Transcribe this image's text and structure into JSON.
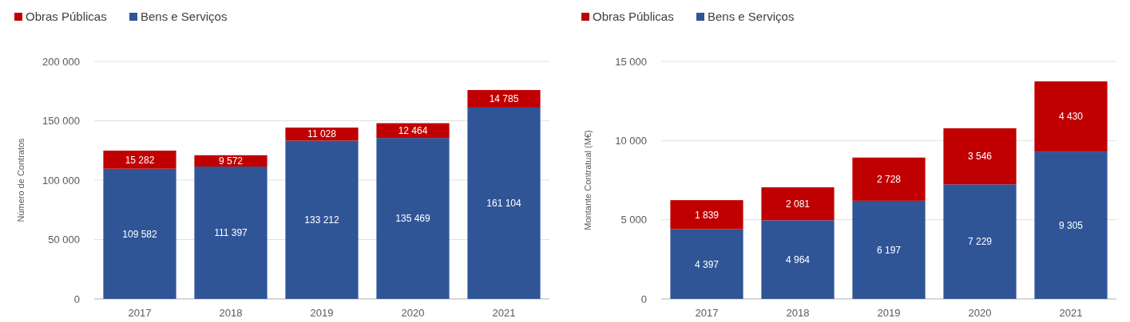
{
  "chart_data": [
    {
      "type": "bar",
      "stacked": true,
      "categories": [
        "2017",
        "2018",
        "2019",
        "2020",
        "2021"
      ],
      "ylabel": "Número de Contratos",
      "ylim": [
        0,
        200000
      ],
      "yticks": [
        {
          "value": 0,
          "label": "0"
        },
        {
          "value": 50000,
          "label": "50 000"
        },
        {
          "value": 100000,
          "label": "100 000"
        },
        {
          "value": 150000,
          "label": "150 000"
        },
        {
          "value": 200000,
          "label": "200 000"
        }
      ],
      "grid": "y",
      "legend": "top left",
      "series": [
        {
          "name": "Bens e Serviços",
          "color": "#2f5597",
          "values": [
            109582,
            111397,
            133212,
            135469,
            161104
          ],
          "value_labels": [
            "109 582",
            "111 397",
            "133 212",
            "135 469",
            "161 104"
          ]
        },
        {
          "name": "Obras Públicas",
          "color": "#c00000",
          "values": [
            15282,
            9572,
            11028,
            12464,
            14785
          ],
          "value_labels": [
            "15 282",
            "9 572",
            "11 028",
            "12 464",
            "14 785"
          ]
        }
      ]
    },
    {
      "type": "bar",
      "stacked": true,
      "categories": [
        "2017",
        "2018",
        "2019",
        "2020",
        "2021"
      ],
      "ylabel": "Montante Contratual (M€)",
      "ylim": [
        0,
        15000
      ],
      "yticks": [
        {
          "value": 0,
          "label": "0"
        },
        {
          "value": 5000,
          "label": "5 000"
        },
        {
          "value": 10000,
          "label": "10 000"
        },
        {
          "value": 15000,
          "label": "15 000"
        }
      ],
      "grid": "y",
      "legend": "top left",
      "series": [
        {
          "name": "Bens e Serviços",
          "color": "#2f5597",
          "values": [
            4397,
            4964,
            6197,
            7229,
            9305
          ],
          "value_labels": [
            "4 397",
            "4 964",
            "6 197",
            "7 229",
            "9 305"
          ]
        },
        {
          "name": "Obras Públicas",
          "color": "#c00000",
          "values": [
            1839,
            2081,
            2728,
            3546,
            4430
          ],
          "value_labels": [
            "1 839",
            "2 081",
            "2 728",
            "3 546",
            "4 430"
          ]
        }
      ]
    }
  ]
}
